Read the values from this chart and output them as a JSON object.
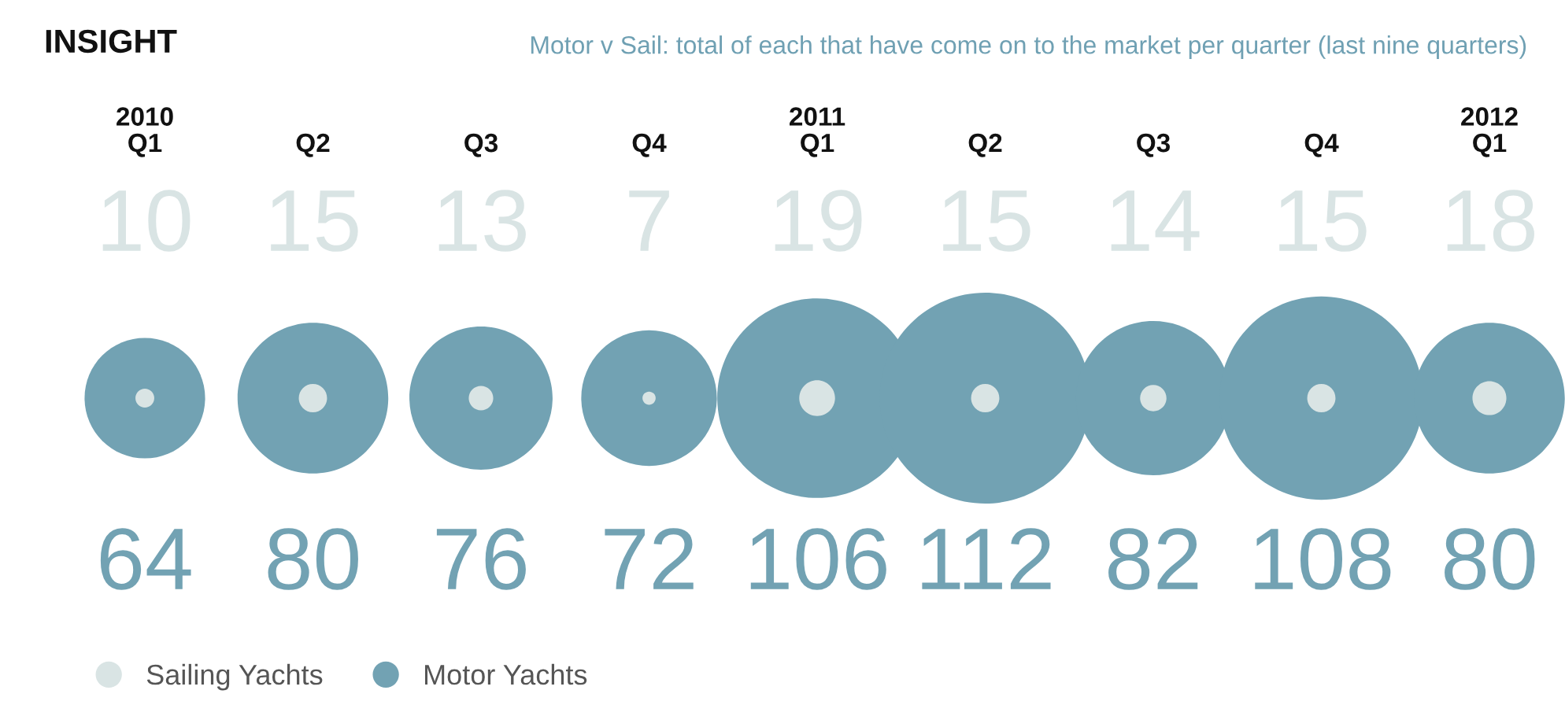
{
  "chart_data": {
    "type": "other",
    "title": "INSIGHT",
    "subtitle": "Motor v Sail: total of each that have come on to the market per quarter (last nine quarters)",
    "categories": [
      "2010\nQ1",
      "Q2",
      "Q3",
      "Q4",
      "2011\nQ1",
      "Q2",
      "Q3",
      "Q4",
      "2012\nQ1"
    ],
    "series": [
      {
        "name": "Sailing Yachts",
        "color": "#d9e4e4",
        "values": [
          10,
          15,
          13,
          7,
          19,
          15,
          14,
          15,
          18
        ]
      },
      {
        "name": "Motor Yachts",
        "color": "#72a2b3",
        "values": [
          64,
          80,
          76,
          72,
          106,
          112,
          82,
          108,
          80
        ]
      }
    ],
    "data_labels": true,
    "legend": "bottom left"
  }
}
